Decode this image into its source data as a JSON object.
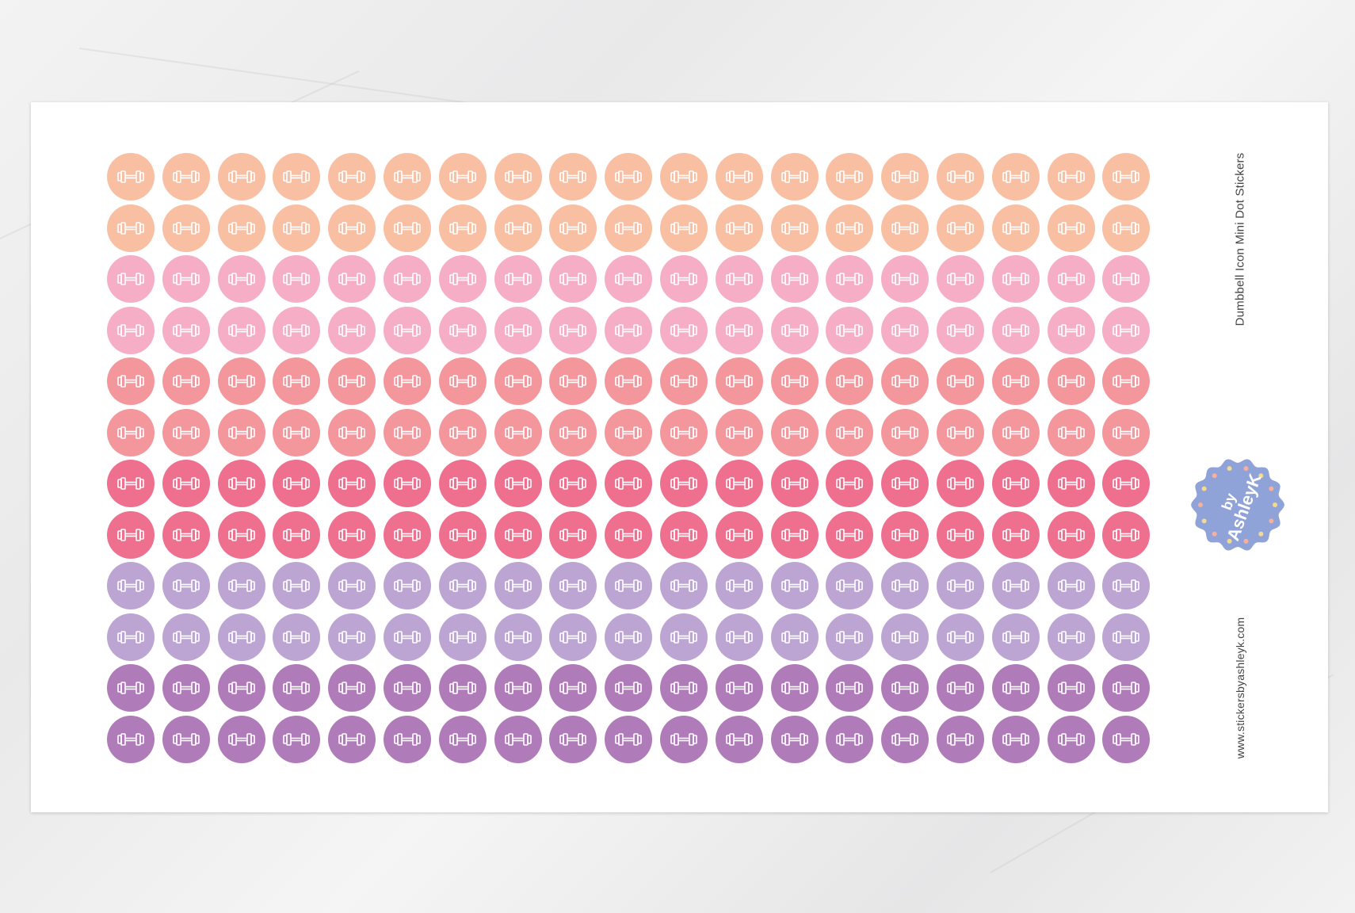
{
  "product": {
    "title": "Dumbbell Icon Mini Dot Stickers",
    "website": "www.stickersbyashleyk.com",
    "logo_text": "by AshleyK",
    "logo_color": "#8fa3d8"
  },
  "sticker_grid": {
    "columns": 19,
    "icon": "dumbbell-icon",
    "row_colors": [
      "#f9bfa2",
      "#f9bfa2",
      "#f6adc6",
      "#f6adc6",
      "#f4979d",
      "#f4979d",
      "#ef6f8f",
      "#ef6f8f",
      "#bca5d2",
      "#bca5d2",
      "#b07bb9",
      "#b07bb9"
    ]
  }
}
